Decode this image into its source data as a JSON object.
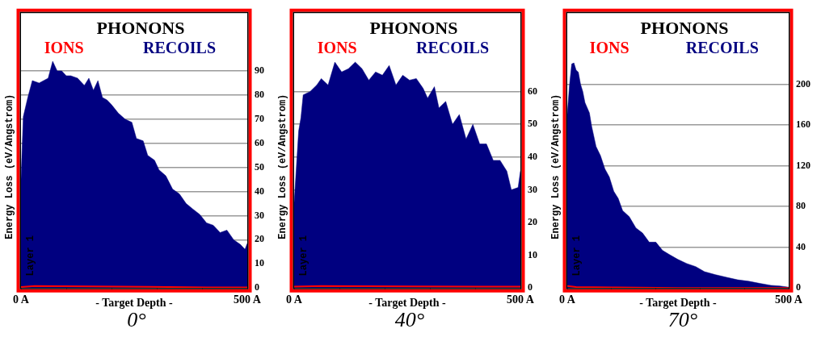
{
  "chart_data": [
    {
      "type": "area",
      "title": "PHONONS",
      "xlabel": "- Target Depth -",
      "ylabel": "Energy Loss (eV/Angstrom)",
      "annotations": [
        "Layer 1",
        "0°"
      ],
      "legend": "top",
      "grid": "y",
      "xlim": [
        0,
        500
      ],
      "xticks": [
        {
          "value": 0,
          "label": "0 A"
        },
        {
          "value": 100,
          "label": null
        },
        {
          "value": 200,
          "label": null
        },
        {
          "value": 300,
          "label": null
        },
        {
          "value": 400,
          "label": null
        },
        {
          "value": 500,
          "label": "500 A"
        }
      ],
      "ylim": [
        0,
        114
      ],
      "yticks": [
        0,
        10,
        20,
        30,
        40,
        50,
        60,
        70,
        80,
        90
      ],
      "series": [
        {
          "name": "RECOILS",
          "color": "#000080",
          "x": [
            0,
            5,
            15,
            25,
            40,
            60,
            70,
            80,
            90,
            100,
            110,
            125,
            140,
            150,
            160,
            170,
            180,
            190,
            200,
            215,
            230,
            245,
            255,
            270,
            280,
            295,
            305,
            320,
            335,
            350,
            365,
            380,
            395,
            410,
            425,
            440,
            455,
            470,
            485,
            495,
            500
          ],
          "values": [
            45,
            71,
            79,
            86,
            85,
            87,
            94,
            90,
            90,
            88,
            88,
            87,
            84,
            87,
            82,
            86,
            79,
            78,
            76,
            72.5,
            70,
            68.7,
            62,
            61,
            55,
            53,
            49,
            46.5,
            41,
            39,
            35,
            32.7,
            30.5,
            27,
            26,
            23,
            24,
            20,
            18,
            16,
            18.5
          ]
        },
        {
          "name": "IONS",
          "type": "line",
          "color": "#ff0000",
          "x": [
            0,
            30,
            285,
            420,
            500
          ],
          "values": [
            0.4,
            0.8,
            0.5,
            0.2,
            0.2
          ]
        }
      ]
    },
    {
      "type": "area",
      "title": "PHONONS",
      "xlabel": "- Target Depth -",
      "ylabel": "Energy Loss (eV/Angstrom)",
      "annotations": [
        "Layer 1",
        "40°"
      ],
      "legend": "top",
      "grid": "y",
      "xlim": [
        0,
        500
      ],
      "xticks": [
        {
          "value": 0,
          "label": "0 A"
        },
        {
          "value": 100,
          "label": null
        },
        {
          "value": 200,
          "label": null
        },
        {
          "value": 300,
          "label": null
        },
        {
          "value": 400,
          "label": null
        },
        {
          "value": 500,
          "label": "500 A"
        }
      ],
      "ylim": [
        0,
        84
      ],
      "yticks": [
        0,
        10,
        20,
        30,
        40,
        50,
        60
      ],
      "series": [
        {
          "name": "RECOILS",
          "color": "#000080",
          "x": [
            0,
            5,
            10,
            15,
            20,
            35,
            50,
            60,
            75,
            90,
            105,
            120,
            135,
            150,
            165,
            180,
            195,
            210,
            225,
            240,
            255,
            270,
            285,
            295,
            310,
            320,
            335,
            350,
            365,
            380,
            395,
            410,
            425,
            440,
            455,
            470,
            480,
            495,
            500
          ],
          "values": [
            26,
            37,
            48,
            52,
            59,
            60,
            62,
            64,
            62,
            69,
            66,
            67,
            69,
            67,
            63.5,
            66,
            65,
            68,
            62,
            65,
            63.5,
            64,
            61,
            58,
            61.5,
            55,
            57,
            50,
            53,
            45.5,
            50,
            44,
            44,
            39,
            39,
            35.7,
            30,
            30.7,
            35.7
          ]
        },
        {
          "name": "IONS",
          "type": "line",
          "color": "#ff0000",
          "x": [
            0,
            60,
            410,
            500
          ],
          "values": [
            0.4,
            0.6,
            0.4,
            0.4
          ]
        }
      ]
    },
    {
      "type": "area",
      "title": "PHONONS",
      "xlabel": "- Target Depth -",
      "ylabel": "Energy Loss (eV/Angstrom)",
      "annotations": [
        "Layer 1",
        "70°"
      ],
      "legend": "top",
      "grid": "y",
      "xlim": [
        0,
        500
      ],
      "xticks": [
        {
          "value": 0,
          "label": "0 A"
        },
        {
          "value": 100,
          "label": null
        },
        {
          "value": 200,
          "label": null
        },
        {
          "value": 300,
          "label": null
        },
        {
          "value": 400,
          "label": null
        },
        {
          "value": 500,
          "label": "500 A"
        }
      ],
      "ylim": [
        0,
        270
      ],
      "yticks": [
        0,
        40,
        80,
        120,
        160,
        200
      ],
      "series": [
        {
          "name": "RECOILS",
          "color": "#000080",
          "x": [
            0,
            5,
            10,
            15,
            20,
            25,
            30,
            35,
            40,
            50,
            55,
            65,
            75,
            85,
            95,
            105,
            115,
            125,
            140,
            155,
            170,
            185,
            200,
            215,
            230,
            250,
            270,
            290,
            310,
            335,
            360,
            385,
            410,
            435,
            460,
            480,
            500
          ],
          "values": [
            170,
            199,
            220,
            221,
            214,
            212,
            200,
            193,
            182,
            172,
            159,
            139,
            130,
            117,
            109,
            95,
            88,
            76,
            70,
            59,
            54,
            45,
            45,
            37,
            33,
            28,
            24,
            21,
            16,
            13,
            10.5,
            8,
            6.6,
            4.5,
            2.6,
            2,
            0.8
          ]
        },
        {
          "name": "IONS",
          "type": "line",
          "color": "#ff0000",
          "x": [
            0,
            20,
            100,
            250,
            500
          ],
          "values": [
            2,
            1,
            0.5,
            0,
            0
          ]
        }
      ]
    }
  ]
}
